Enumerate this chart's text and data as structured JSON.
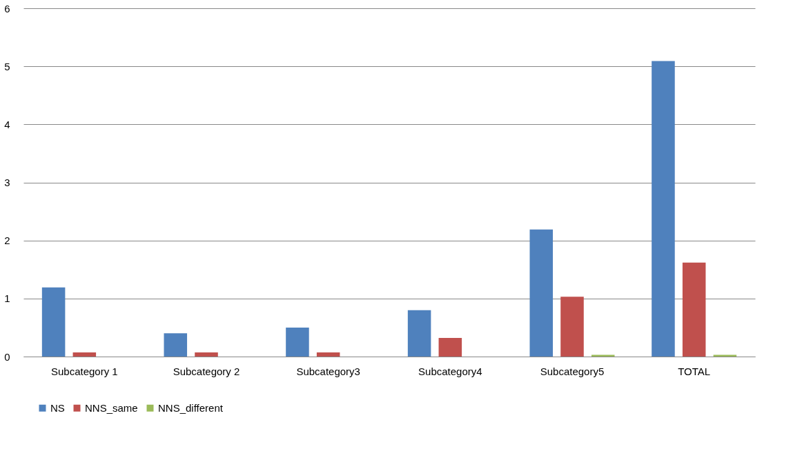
{
  "chart_data": {
    "type": "bar",
    "categories": [
      "Subcategory 1",
      "Subcategory 2",
      "Subcategory3",
      "Subcategory4",
      "Subcategory5",
      "TOTAL"
    ],
    "series": [
      {
        "name": "NS",
        "color": "#4f81bd",
        "values": [
          1.19,
          0.4,
          0.5,
          0.8,
          2.19,
          5.09
        ]
      },
      {
        "name": "NNS_same",
        "color": "#c0504d",
        "values": [
          0.07,
          0.07,
          0.07,
          0.32,
          1.03,
          1.62
        ]
      },
      {
        "name": "NNS_different",
        "color": "#9bbb59",
        "values": [
          0,
          0,
          0,
          0,
          0.03,
          0.03
        ]
      }
    ],
    "ylim": [
      0,
      6
    ],
    "yticks": [
      0,
      1,
      2,
      3,
      4,
      5,
      6
    ],
    "grid": "y",
    "legend": "bottom"
  }
}
